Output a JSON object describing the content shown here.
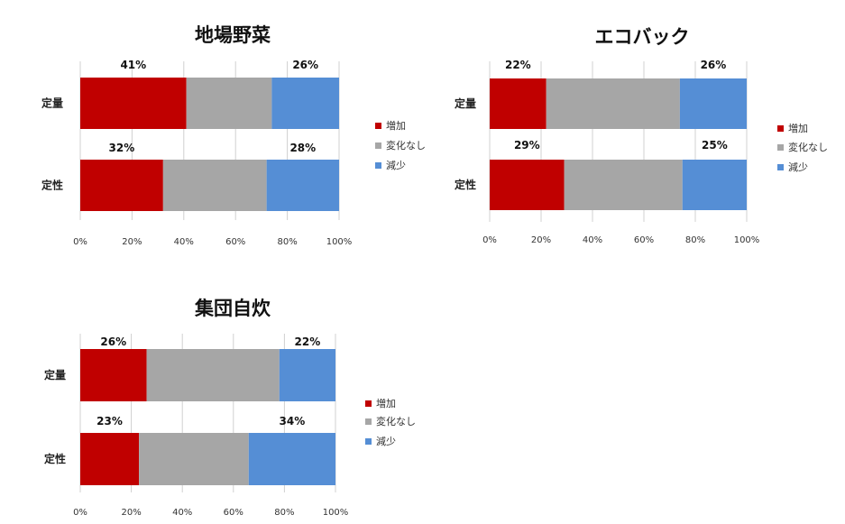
{
  "colors": {
    "増加": "#c00000",
    "変化なし": "#a6a6a6",
    "減少": "#558ed5"
  },
  "chart_data": [
    {
      "type": "bar",
      "orientation": "horizontal",
      "stacked": true,
      "title": "地場野菜",
      "categories": [
        "定量",
        "定性"
      ],
      "series": [
        {
          "name": "増加",
          "values": [
            41,
            32
          ]
        },
        {
          "name": "変化なし",
          "values": [
            33,
            40
          ]
        },
        {
          "name": "減少",
          "values": [
            26,
            28
          ]
        }
      ],
      "xlim": [
        0,
        100
      ],
      "x_ticks": [
        "0%",
        "20%",
        "40%",
        "60%",
        "80%",
        "100%"
      ],
      "grid": true,
      "legend": "right"
    },
    {
      "type": "bar",
      "orientation": "horizontal",
      "stacked": true,
      "title": "エコバック",
      "categories": [
        "定量",
        "定性"
      ],
      "series": [
        {
          "name": "増加",
          "values": [
            22,
            29
          ]
        },
        {
          "name": "変化なし",
          "values": [
            52,
            46
          ]
        },
        {
          "name": "減少",
          "values": [
            26,
            25
          ]
        }
      ],
      "xlim": [
        0,
        100
      ],
      "x_ticks": [
        "0%",
        "20%",
        "40%",
        "60%",
        "80%",
        "100%"
      ],
      "grid": true,
      "legend": "right"
    },
    {
      "type": "bar",
      "orientation": "horizontal",
      "stacked": true,
      "title": "集団自炊",
      "categories": [
        "定量",
        "定性"
      ],
      "series": [
        {
          "name": "増加",
          "values": [
            26,
            23
          ]
        },
        {
          "name": "変化なし",
          "values": [
            52,
            43
          ]
        },
        {
          "name": "減少",
          "values": [
            22,
            34
          ]
        }
      ],
      "xlim": [
        0,
        100
      ],
      "x_ticks": [
        "0%",
        "20%",
        "40%",
        "60%",
        "80%",
        "100%"
      ],
      "grid": true,
      "legend": "right"
    }
  ]
}
